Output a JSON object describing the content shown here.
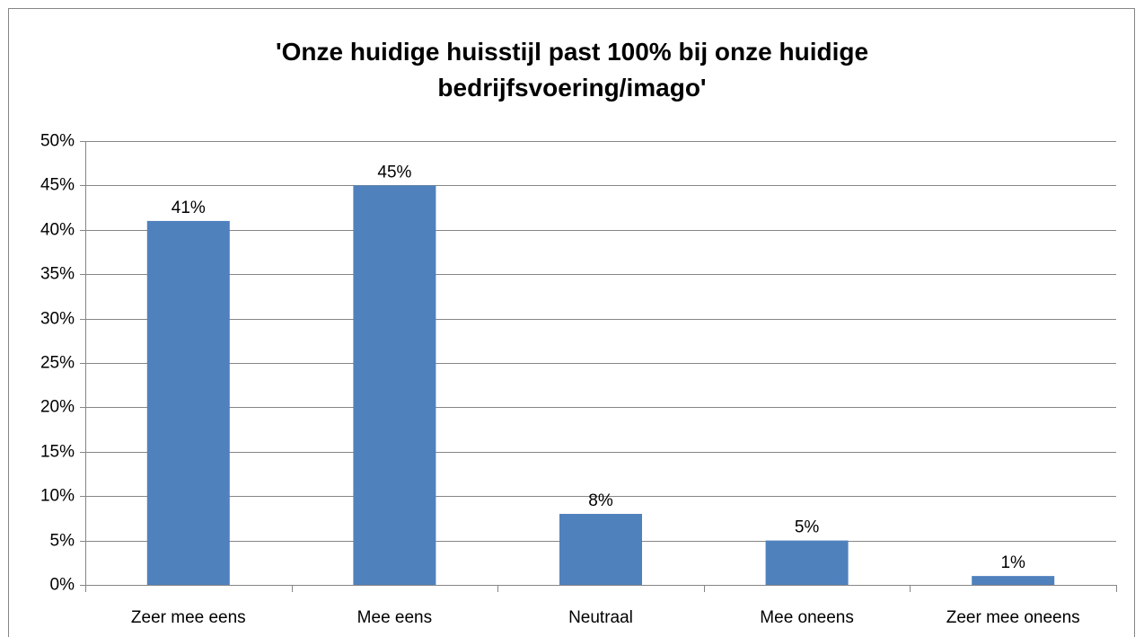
{
  "chart_data": {
    "type": "bar",
    "title": "'Onze huidige huisstijl past 100% bij onze huidige bedrijfsvoering/imago'",
    "categories": [
      "Zeer mee eens",
      "Mee eens",
      "Neutraal",
      "Mee oneens",
      "Zeer mee oneens"
    ],
    "values": [
      41,
      45,
      8,
      5,
      1
    ],
    "value_labels": [
      "41%",
      "45%",
      "8%",
      "5%",
      "1%"
    ],
    "color": "#4f81bd",
    "ylim": [
      0,
      50
    ],
    "yticks": [
      {
        "value": 0,
        "label": "0%"
      },
      {
        "value": 5,
        "label": "5%"
      },
      {
        "value": 10,
        "label": "10%"
      },
      {
        "value": 15,
        "label": "15%"
      },
      {
        "value": 20,
        "label": "20%"
      },
      {
        "value": 25,
        "label": "25%"
      },
      {
        "value": 30,
        "label": "30%"
      },
      {
        "value": 35,
        "label": "35%"
      },
      {
        "value": 40,
        "label": "40%"
      },
      {
        "value": 45,
        "label": "45%"
      },
      {
        "value": 50,
        "label": "50%"
      }
    ],
    "grid": true
  }
}
